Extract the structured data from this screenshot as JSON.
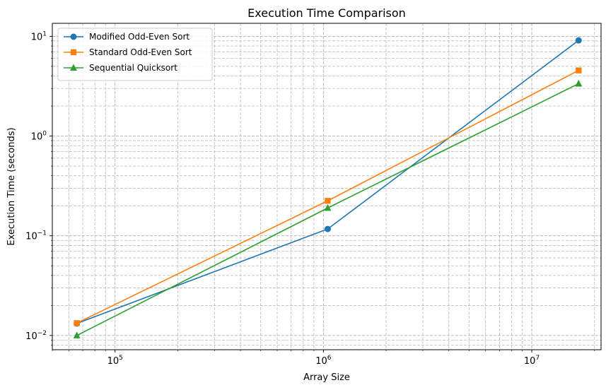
{
  "chart_data": {
    "type": "line",
    "title": "Execution Time Comparison",
    "xlabel": "Array Size",
    "ylabel": "Execution Time (seconds)",
    "xscale": "log",
    "yscale": "log",
    "xlim": [
      50000,
      21500000
    ],
    "ylim": [
      0.0072,
      13.5
    ],
    "grid": true,
    "legend_position": "top-left",
    "x": [
      65536,
      1048576,
      16777216
    ],
    "x_ticks": [
      {
        "value": 100000,
        "base": "10",
        "exp": "5"
      },
      {
        "value": 1000000,
        "base": "10",
        "exp": "6"
      },
      {
        "value": 10000000,
        "base": "10",
        "exp": "7"
      }
    ],
    "y_ticks": [
      {
        "value": 0.01,
        "base": "10",
        "exp": "−2"
      },
      {
        "value": 0.1,
        "base": "10",
        "exp": "−1"
      },
      {
        "value": 1,
        "base": "10",
        "exp": "0"
      },
      {
        "value": 10,
        "base": "10",
        "exp": "1"
      }
    ],
    "series": [
      {
        "name": "Modified Odd-Even Sort",
        "color": "#1f77b4",
        "marker": "circle",
        "values": [
          0.0132,
          0.117,
          9.1
        ]
      },
      {
        "name": "Standard Odd-Even Sort",
        "color": "#ff7f0e",
        "marker": "square",
        "values": [
          0.0133,
          0.224,
          4.55
        ]
      },
      {
        "name": "Sequential Quicksort",
        "color": "#2ca02c",
        "marker": "triangle",
        "values": [
          0.01,
          0.19,
          3.35
        ]
      }
    ]
  }
}
